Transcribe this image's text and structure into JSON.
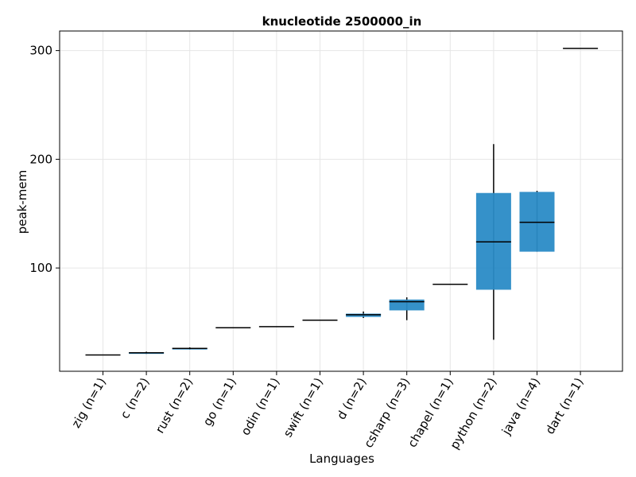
{
  "chart_data": {
    "type": "box",
    "title": "knucleotide 2500000_in",
    "xlabel": "Languages",
    "ylabel": "peak-mem",
    "ylim": [
      5,
      318
    ],
    "yticks": [
      100,
      200,
      300
    ],
    "grid": true,
    "box_color": "#2a8bc6",
    "categories": [
      {
        "label": "zig (n=1)",
        "min": 20,
        "q1": 20,
        "median": 20,
        "q3": 20,
        "max": 20
      },
      {
        "label": "c (n=2)",
        "min": 21,
        "q1": 21,
        "median": 22,
        "q3": 22.5,
        "max": 23
      },
      {
        "label": "rust (n=2)",
        "min": 25,
        "q1": 25,
        "median": 26,
        "q3": 26.5,
        "max": 27
      },
      {
        "label": "go (n=1)",
        "min": 45,
        "q1": 45,
        "median": 45,
        "q3": 45,
        "max": 45
      },
      {
        "label": "odin (n=1)",
        "min": 46,
        "q1": 46,
        "median": 46,
        "q3": 46,
        "max": 46
      },
      {
        "label": "swift (n=1)",
        "min": 52,
        "q1": 52,
        "median": 52,
        "q3": 52,
        "max": 52
      },
      {
        "label": "d (n=2)",
        "min": 54,
        "q1": 55,
        "median": 57,
        "q3": 58,
        "max": 60
      },
      {
        "label": "csharp (n=3)",
        "min": 52,
        "q1": 61,
        "median": 69,
        "q3": 71,
        "max": 73
      },
      {
        "label": "chapel (n=1)",
        "min": 85,
        "q1": 85,
        "median": 85,
        "q3": 85,
        "max": 85
      },
      {
        "label": "python (n=2)",
        "min": 34,
        "q1": 80,
        "median": 124,
        "q3": 169,
        "max": 214
      },
      {
        "label": "java (n=4)",
        "min": 115,
        "q1": 115,
        "median": 142,
        "q3": 170,
        "max": 171
      },
      {
        "label": "dart (n=1)",
        "min": 302,
        "q1": 302,
        "median": 302,
        "q3": 302,
        "max": 302
      }
    ]
  }
}
